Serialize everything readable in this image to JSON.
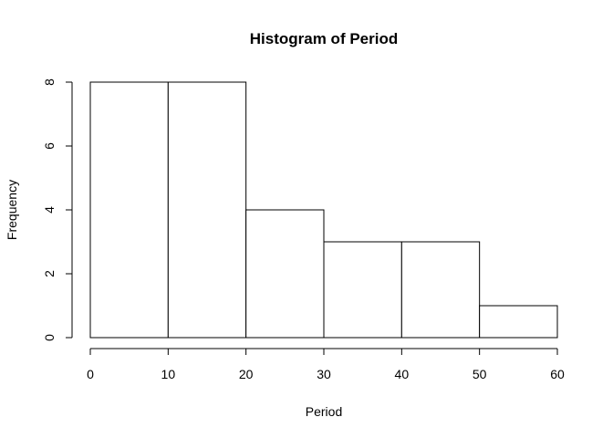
{
  "chart_data": {
    "type": "bar",
    "title": "Histogram of Period",
    "xlabel": "Period",
    "ylabel": "Frequency",
    "bins": [
      {
        "start": 0,
        "end": 10,
        "value": 8
      },
      {
        "start": 10,
        "end": 20,
        "value": 8
      },
      {
        "start": 20,
        "end": 30,
        "value": 4
      },
      {
        "start": 30,
        "end": 40,
        "value": 3
      },
      {
        "start": 40,
        "end": 50,
        "value": 3
      },
      {
        "start": 50,
        "end": 60,
        "value": 1
      }
    ],
    "xlim": [
      0,
      60
    ],
    "ylim": [
      0,
      8
    ],
    "xticks": [
      0,
      10,
      20,
      30,
      40,
      50,
      60
    ],
    "yticks": [
      0,
      2,
      4,
      6,
      8
    ],
    "grid": false,
    "colors": {
      "bar_fill": "#ffffff",
      "bar_stroke": "#000000"
    }
  }
}
